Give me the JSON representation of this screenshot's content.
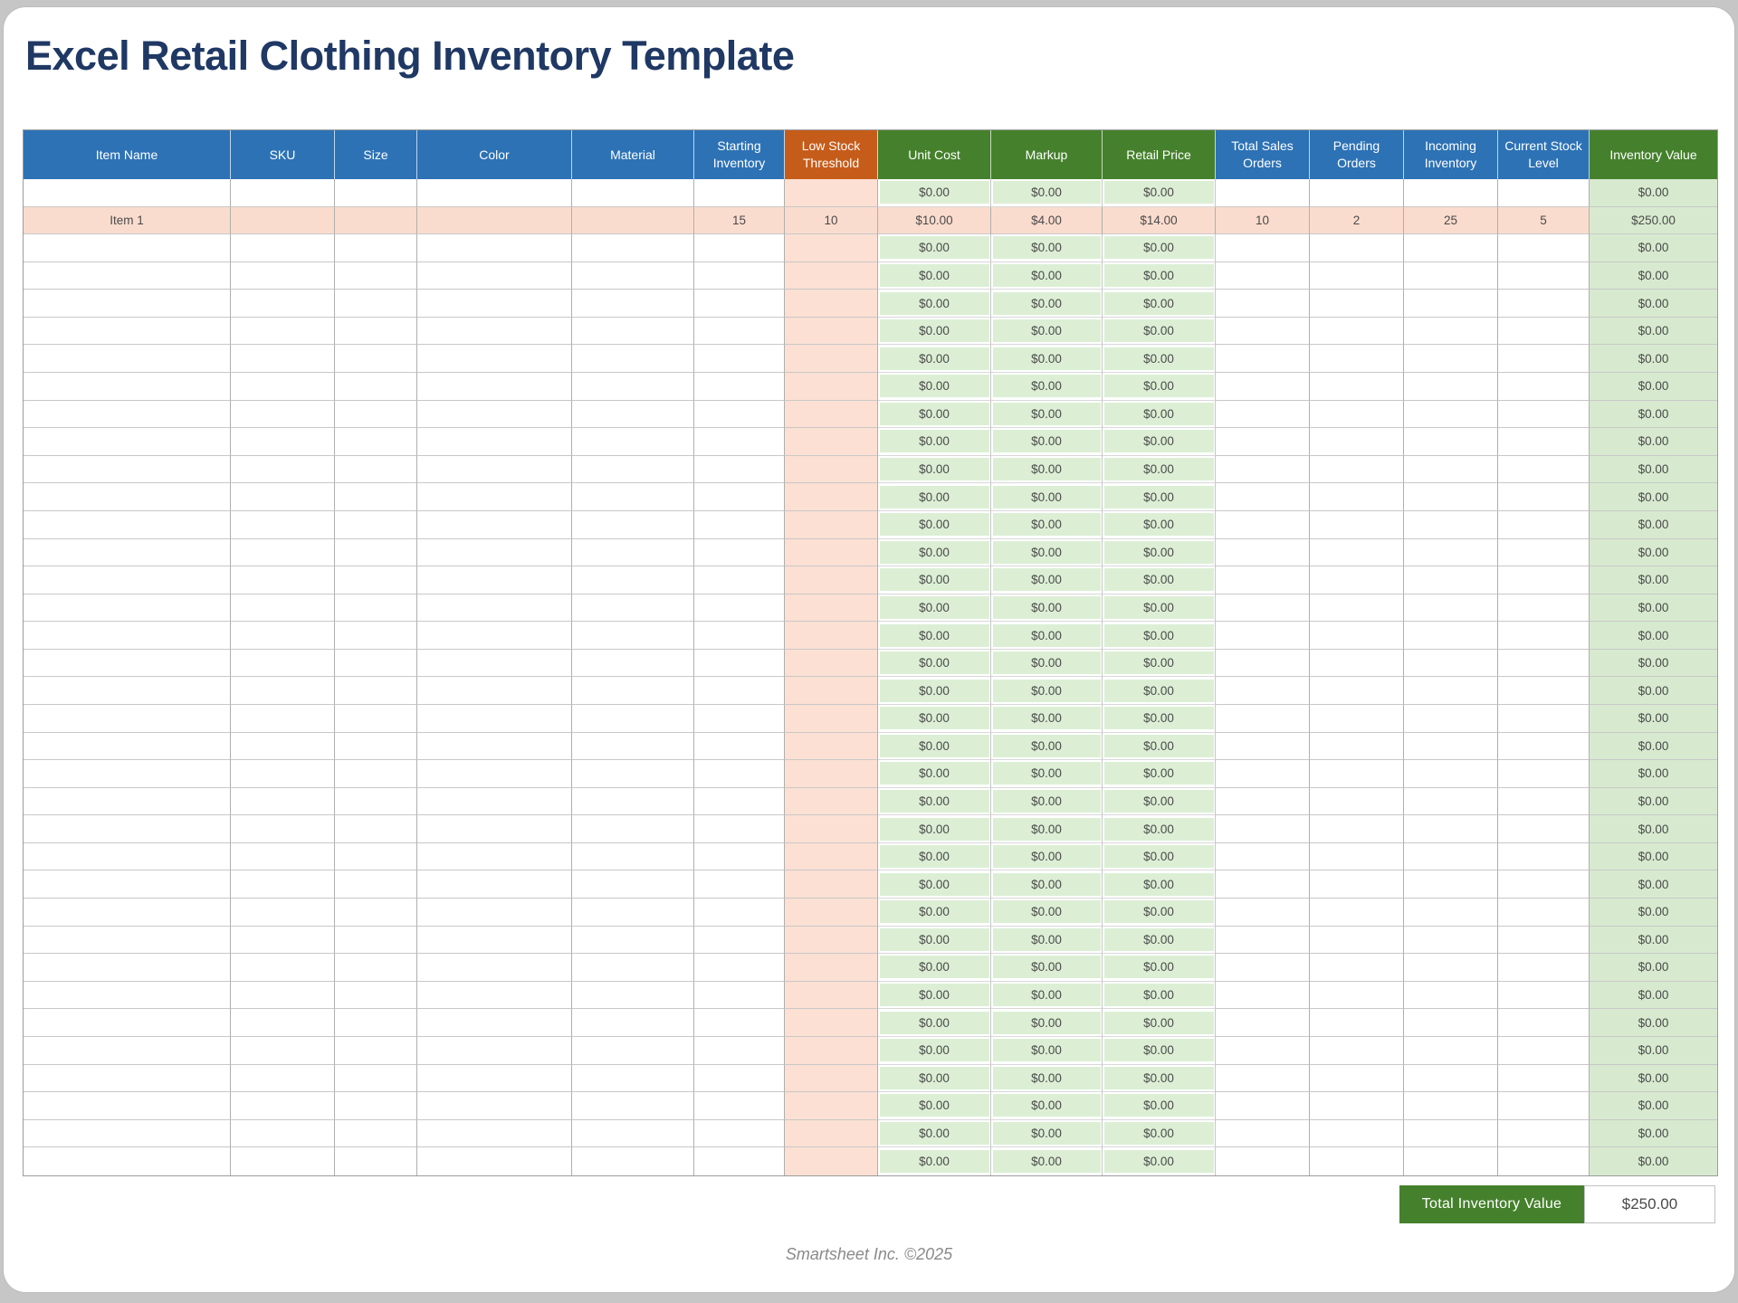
{
  "page": {
    "title": "Excel Retail Clothing Inventory Template",
    "footer_credit": "Smartsheet Inc. ©2025"
  },
  "colors": {
    "header_blue": "#2D72B5",
    "header_orange": "#C65C1A",
    "header_green": "#45812C",
    "cell_light_green": "#DCEFD5",
    "cell_inventory_green": "#D7EACF",
    "cell_peach": "#FBE0D3",
    "item_row_peach": "#FADCCE",
    "title_navy": "#1F3864",
    "summary_green": "#45812C"
  },
  "table": {
    "columns": [
      {
        "id": "item_name",
        "label": "Item Name",
        "header": "blue",
        "body": "plain"
      },
      {
        "id": "sku",
        "label": "SKU",
        "header": "blue",
        "body": "plain"
      },
      {
        "id": "size",
        "label": "Size",
        "header": "blue",
        "body": "plain"
      },
      {
        "id": "color",
        "label": "Color",
        "header": "blue",
        "body": "plain"
      },
      {
        "id": "material",
        "label": "Material",
        "header": "blue",
        "body": "plain"
      },
      {
        "id": "starting_inventory",
        "label": "Starting Inventory",
        "header": "blue",
        "body": "plain"
      },
      {
        "id": "low_stock_threshold",
        "label": "Low Stock Threshold",
        "header": "orange",
        "body": "peach"
      },
      {
        "id": "unit_cost",
        "label": "Unit Cost",
        "header": "green",
        "body": "green"
      },
      {
        "id": "markup",
        "label": "Markup",
        "header": "green",
        "body": "green"
      },
      {
        "id": "retail_price",
        "label": "Retail Price",
        "header": "green",
        "body": "green"
      },
      {
        "id": "total_sales_orders",
        "label": "Total Sales Orders",
        "header": "blue",
        "body": "plain"
      },
      {
        "id": "pending_orders",
        "label": "Pending Orders",
        "header": "blue",
        "body": "plain"
      },
      {
        "id": "incoming_inventory",
        "label": "Incoming Inventory",
        "header": "blue",
        "body": "plain"
      },
      {
        "id": "current_stock_level",
        "label": "Current Stock Level",
        "header": "blue",
        "body": "plain"
      },
      {
        "id": "inventory_value",
        "label": "Inventory Value",
        "header": "green",
        "body": "green"
      }
    ],
    "rows_total": 36,
    "item_row_index": 2,
    "empty_row": {
      "item_name": "",
      "sku": "",
      "size": "",
      "color": "",
      "material": "",
      "starting_inventory": "",
      "low_stock_threshold": "",
      "unit_cost": "$0.00",
      "markup": "$0.00",
      "retail_price": "$0.00",
      "total_sales_orders": "",
      "pending_orders": "",
      "incoming_inventory": "",
      "current_stock_level": "",
      "inventory_value": "$0.00"
    },
    "item_row": {
      "item_name": "Item 1",
      "sku": "",
      "size": "",
      "color": "",
      "material": "",
      "starting_inventory": "15",
      "low_stock_threshold": "10",
      "unit_cost": "$10.00",
      "markup": "$4.00",
      "retail_price": "$14.00",
      "total_sales_orders": "10",
      "pending_orders": "2",
      "incoming_inventory": "25",
      "current_stock_level": "5",
      "inventory_value": "$250.00"
    }
  },
  "summary": {
    "label": "Total Inventory Value",
    "value": "$250.00"
  }
}
